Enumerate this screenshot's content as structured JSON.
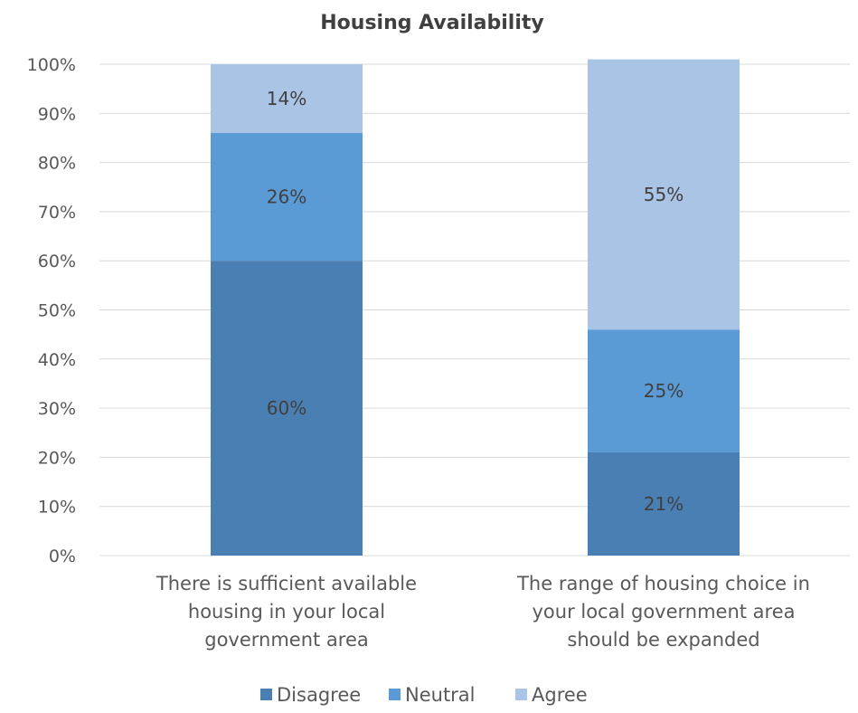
{
  "chart_data": {
    "type": "bar",
    "stacked": true,
    "title": "Housing Availability",
    "xlabel": "",
    "ylabel": "",
    "ylim": [
      0,
      100
    ],
    "y_tick_labels": [
      "0%",
      "10%",
      "20%",
      "30%",
      "40%",
      "50%",
      "60%",
      "70%",
      "80%",
      "90%",
      "100%"
    ],
    "categories": [
      "There is sufficient available housing in your local government area",
      "The range of housing choice in your local government area should be expanded"
    ],
    "category_label_lines": [
      [
        "There is sufficient available",
        "housing in your local",
        "government area"
      ],
      [
        "The range of housing choice in",
        "your local government area",
        "should be expanded"
      ]
    ],
    "series": [
      {
        "name": "Disagree",
        "values": [
          60,
          21
        ],
        "labels": [
          "60%",
          "21%"
        ],
        "color": "#4a7fb3"
      },
      {
        "name": "Neutral",
        "values": [
          26,
          25
        ],
        "labels": [
          "26%",
          "25%"
        ],
        "color": "#5b9bd5"
      },
      {
        "name": "Agree",
        "values": [
          14,
          55
        ],
        "labels": [
          "14%",
          "55%"
        ],
        "color": "#a9c4e4"
      }
    ],
    "grid": true,
    "legend_position": "bottom"
  }
}
